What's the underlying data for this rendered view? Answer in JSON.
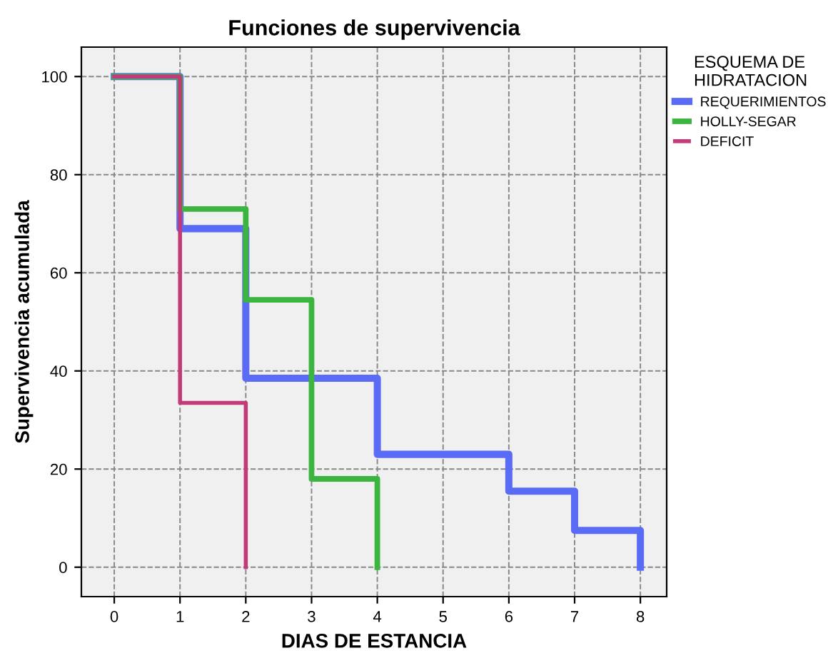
{
  "chart_data": {
    "type": "step",
    "title": "Funciones de supervivencia",
    "xlabel": "DIAS DE ESTANCIA",
    "ylabel": "Supervivencia acumulada",
    "legend_title": "ESQUEMA DE\nHIDRATACION",
    "legend": "top right",
    "grid": true,
    "line_style": "solid",
    "marker": "none",
    "xlim": [
      -0.5,
      8.4
    ],
    "xticks": [
      0,
      1,
      2,
      3,
      4,
      5,
      6,
      7,
      8
    ],
    "ylim": [
      -6,
      106
    ],
    "yticks": [
      0,
      20,
      40,
      60,
      80,
      100
    ],
    "series": [
      {
        "name": "REQUERIMIENTOS",
        "color": "#5a6cf5",
        "x": [
          0,
          1,
          2,
          4,
          6,
          7,
          8
        ],
        "values": [
          100,
          69,
          38.5,
          23,
          15.5,
          7.5,
          0
        ]
      },
      {
        "name": "HOLLY-SEGAR",
        "color": "#3cb440",
        "x": [
          0,
          1,
          2,
          3,
          4
        ],
        "values": [
          100,
          73,
          54.5,
          18,
          0
        ]
      },
      {
        "name": "DEFICIT",
        "color": "#c23a78",
        "x": [
          0,
          1,
          2
        ],
        "values": [
          100,
          33.5,
          0
        ]
      }
    ]
  }
}
